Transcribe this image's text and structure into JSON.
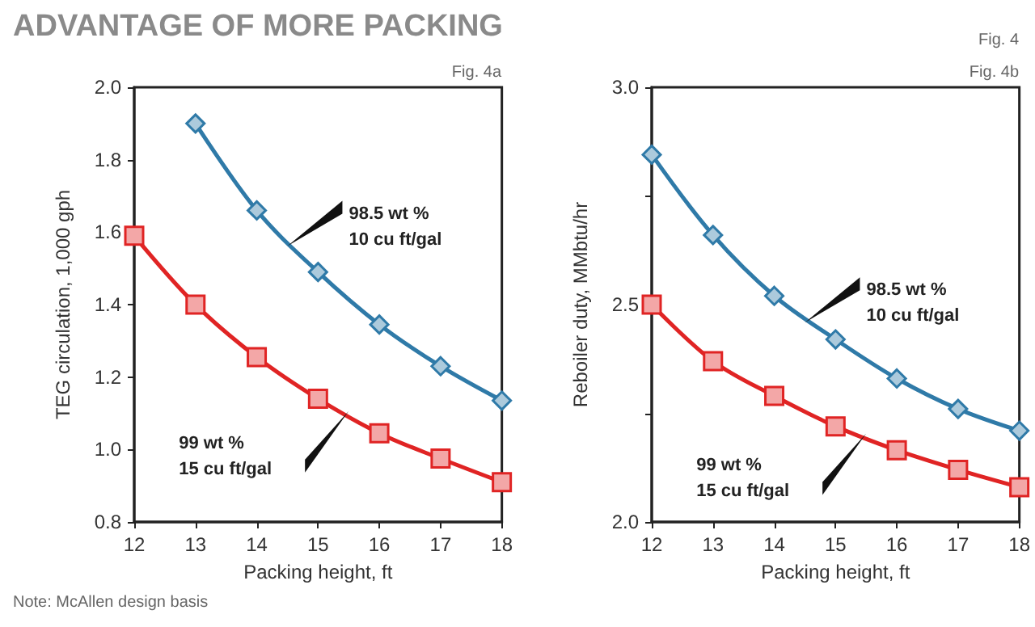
{
  "chart_data": [
    {
      "type": "line",
      "title": "ADVANTAGE OF MORE PACKING",
      "xlabel": "Packing height, ft",
      "ylabel": "TEG circulation, 1,000 gph",
      "annotations": [
        "Fig. 4a",
        "Note: McAllen design basis"
      ],
      "series": [
        {
          "name": "98.5 wt %\n10 cu ft/gal",
          "color": "#2f7aa8",
          "marker": "diamond",
          "x": [
            13,
            14,
            15,
            16,
            17,
            18
          ],
          "values": [
            1.9,
            1.66,
            1.49,
            1.345,
            1.23,
            1.135
          ]
        },
        {
          "name": "99 wt %\n15 cu ft/gal",
          "color": "#e02424",
          "marker": "square",
          "x": [
            12,
            13,
            14,
            15,
            16,
            17,
            18
          ],
          "values": [
            1.59,
            1.4,
            1.255,
            1.14,
            1.045,
            0.975,
            0.91
          ]
        }
      ],
      "xlim": [
        12,
        18
      ],
      "xticks": [
        12,
        13,
        14,
        15,
        16,
        17,
        18
      ],
      "ylim": [
        0.8,
        2.0
      ],
      "yticks": [
        0.8,
        {
          "value": 1.0,
          "label": "1.0"
        },
        1.2,
        1.4,
        1.6,
        1.8,
        {
          "value": 2.0,
          "label": "2.0"
        }
      ],
      "grid": false,
      "legend": false
    },
    {
      "type": "line",
      "xlabel": "Packing height, ft",
      "ylabel": "Reboiler duty, MMbtu/hr",
      "annotations": [
        "Fig. 4",
        "Fig. 4b"
      ],
      "series": [
        {
          "name": "98.5 wt %\n10 cu ft/gal",
          "color": "#2f7aa8",
          "marker": "diamond",
          "x": [
            12,
            13,
            14,
            15,
            16,
            17,
            18
          ],
          "values": [
            2.845,
            2.66,
            2.52,
            2.42,
            2.33,
            2.26,
            2.21
          ]
        },
        {
          "name": "99 wt %\n15 cu ft/gal",
          "color": "#e02424",
          "marker": "square",
          "x": [
            12,
            13,
            14,
            15,
            16,
            17,
            18
          ],
          "values": [
            2.5,
            2.37,
            2.29,
            2.22,
            2.165,
            2.12,
            2.08
          ]
        }
      ],
      "xlim": [
        12,
        18
      ],
      "xticks": [
        12,
        13,
        14,
        15,
        16,
        17,
        18
      ],
      "ylim": [
        2.0,
        3.0
      ],
      "yticks": [
        {
          "value": 2.0,
          "label": "2.0"
        },
        {
          "value": 2.25,
          "label": null
        },
        2.5,
        {
          "value": 2.75,
          "label": null
        },
        {
          "value": 3.0,
          "label": "3.0"
        }
      ],
      "grid": false,
      "legend": false
    }
  ]
}
